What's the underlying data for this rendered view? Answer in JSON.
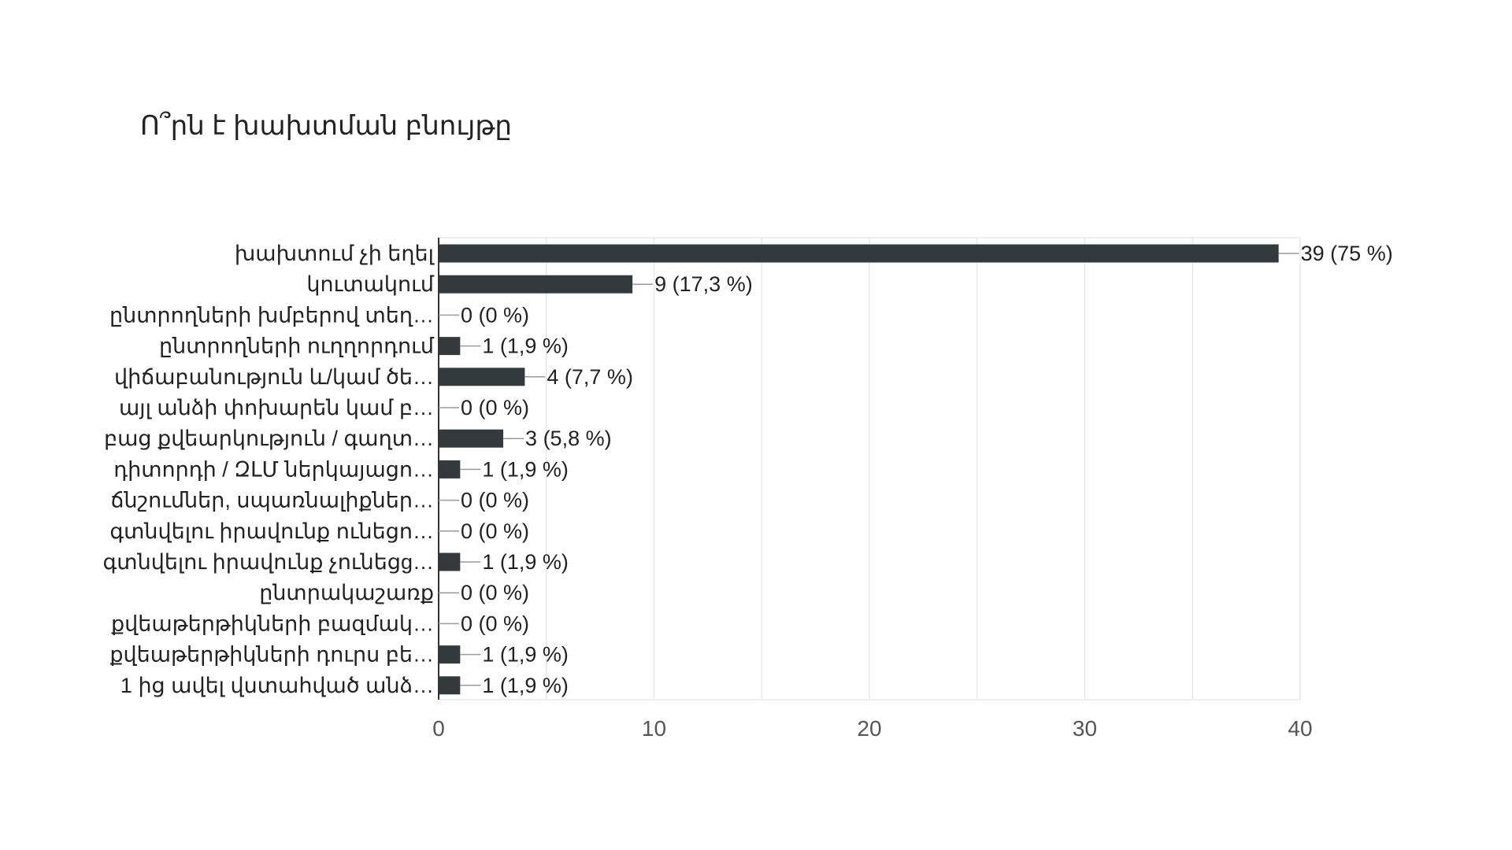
{
  "chart_data": {
    "type": "bar",
    "orientation": "horizontal",
    "title": "Ո՞րն է խախտման բնույթը",
    "categories": [
      "խախտում չի եղել",
      "կուտակում",
      "ընտրողների խմբերով տեղ…",
      "ընտրողների ուղղորդում",
      "վիճաբանություն և/կամ ծե…",
      "այլ անձի փոխարեն կամ բ…",
      "բաց քվեարկություն / գաղտ…",
      "դիտորդի / ԶԼՄ ներկայացո…",
      "ճնշումներ, սպառնալիքներ…",
      "գտնվելու իրավունք ունեցո…",
      "գտնվելու իրավունք չունեցg…",
      "ընտրակաշառք",
      "քվեաթերթիկների բազմակ…",
      "քվեաթերթիկների դուրս բե…",
      "1 ից ավել վստահված անձ…"
    ],
    "values": [
      39,
      9,
      0,
      1,
      4,
      0,
      3,
      1,
      0,
      0,
      1,
      0,
      0,
      1,
      1
    ],
    "data_labels": [
      "39 (75 %)",
      "9 (17,3 %)",
      "0 (0 %)",
      "1 (1,9 %)",
      "4 (7,7 %)",
      "0 (0 %)",
      "3 (5,8 %)",
      "1 (1,9 %)",
      "0 (0 %)",
      "0 (0 %)",
      "1 (1,9 %)",
      "0 (0 %)",
      "0 (0 %)",
      "1 (1,9 %)",
      "1 (1,9 %)"
    ],
    "xlim": [
      0,
      40
    ],
    "x_ticks": [
      0,
      10,
      20,
      30,
      40
    ],
    "x_tick_labels": [
      "0",
      "10",
      "20",
      "30",
      "40"
    ],
    "grid": true,
    "bar_color": "#333a3d",
    "grid_color": "#e8e8e8",
    "axis_color": "#333333",
    "text_color": "#222222",
    "tick_label_color": "#555555"
  }
}
